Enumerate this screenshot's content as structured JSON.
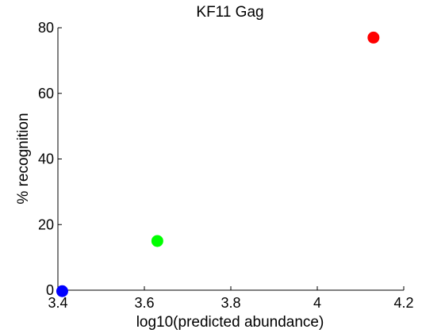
{
  "chart_data": {
    "type": "scatter",
    "title": "KF11 Gag",
    "xlabel": "log10(predicted abundance)",
    "ylabel": "% recognition",
    "xlim": [
      3.4,
      4.2
    ],
    "ylim": [
      0,
      80
    ],
    "grid": false,
    "x_ticks": [
      3.4,
      3.6,
      3.8,
      4.0,
      4.2
    ],
    "x_tick_labels": [
      "3.4",
      "3.6",
      "3.8",
      "4",
      "4.2"
    ],
    "y_ticks": [
      0,
      20,
      40,
      60,
      80
    ],
    "y_tick_labels": [
      "0",
      "20",
      "40",
      "60",
      "80"
    ],
    "points": [
      {
        "x": 3.41,
        "y": -0.3,
        "color": "#0000ff"
      },
      {
        "x": 3.63,
        "y": 15.0,
        "color": "#00ff00"
      },
      {
        "x": 4.13,
        "y": 77.0,
        "color": "#ff0000"
      }
    ]
  }
}
